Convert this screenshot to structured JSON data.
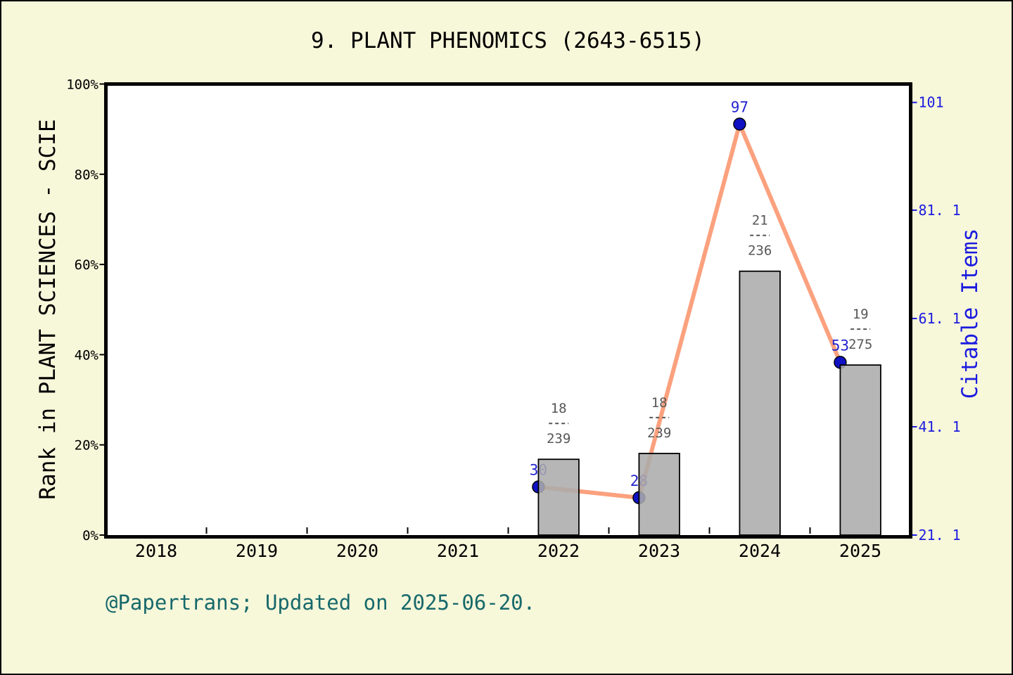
{
  "figure": {
    "title": "9. PLANT PHENOMICS (2643-6515)",
    "footer": "@Papertrans; Updated on 2025-06-20.",
    "background_color": "#F7F7DA"
  },
  "chart_data": {
    "type": "bar+line",
    "title": "9. PLANT PHENOMICS (2643-6515)",
    "legend_position": "none",
    "grid": false,
    "x_years": [
      2018,
      2019,
      2020,
      2021,
      2022,
      2023,
      2024,
      2025
    ],
    "x_tick_labels": [
      "2018",
      "2019",
      "2020",
      "2021",
      "2022",
      "2023",
      "2024",
      "2025"
    ],
    "left_axis": {
      "label": "Rank in PLANT SCIENCES - SCIE",
      "range": [
        0,
        100
      ],
      "ticks": [
        {
          "value": 0,
          "label": "0%"
        },
        {
          "value": 20,
          "label": "20%"
        },
        {
          "value": 40,
          "label": "40%"
        },
        {
          "value": 60,
          "label": "60%"
        },
        {
          "value": 80,
          "label": "80%"
        },
        {
          "value": 100,
          "label": "100%"
        }
      ]
    },
    "right_axis": {
      "label": "Citable Items",
      "range": [
        21.1,
        104.4
      ],
      "ticks": [
        {
          "value": 21.1,
          "label": "21. 1"
        },
        {
          "value": 41.1,
          "label": "41. 1"
        },
        {
          "value": 61.1,
          "label": "61. 1"
        },
        {
          "value": 81.1,
          "label": "81. 1"
        },
        {
          "value": 101,
          "label": "101"
        }
      ]
    },
    "bars": {
      "name": "Rank in PLANT SCIENCES - SCIE",
      "axis": "left",
      "points": [
        {
          "year": 2022,
          "height_pct": 16.8,
          "numerator": "18",
          "denominator": "239"
        },
        {
          "year": 2023,
          "height_pct": 18.1,
          "numerator": "18",
          "denominator": "239"
        },
        {
          "year": 2024,
          "height_pct": 58.5,
          "numerator": "21",
          "denominator": "236"
        },
        {
          "year": 2025,
          "height_pct": 37.7,
          "numerator": "19",
          "denominator": "275"
        }
      ]
    },
    "line": {
      "name": "Citable Items",
      "axis": "right",
      "points": [
        {
          "year": 2022,
          "value": 30,
          "label": "30"
        },
        {
          "year": 2023,
          "value": 28,
          "label": "28"
        },
        {
          "year": 2024,
          "value": 97,
          "label": "97"
        },
        {
          "year": 2025,
          "value": 53,
          "label": "53"
        }
      ]
    },
    "colors": {
      "plot_bg": "#FFFFFF",
      "border": "#000000",
      "bar_fill": "rgba(171,171,171,0.87)",
      "bar_edge": "#000000",
      "line": "#FBA17E",
      "dot_fill": "#1111C4",
      "dot_edge": "#000000",
      "value_label": "#2323CD",
      "fraction_label": "#575757",
      "left_axis_text": "#000000",
      "right_axis_text": "#1B1BE0",
      "footer_text": "#17696B"
    }
  }
}
